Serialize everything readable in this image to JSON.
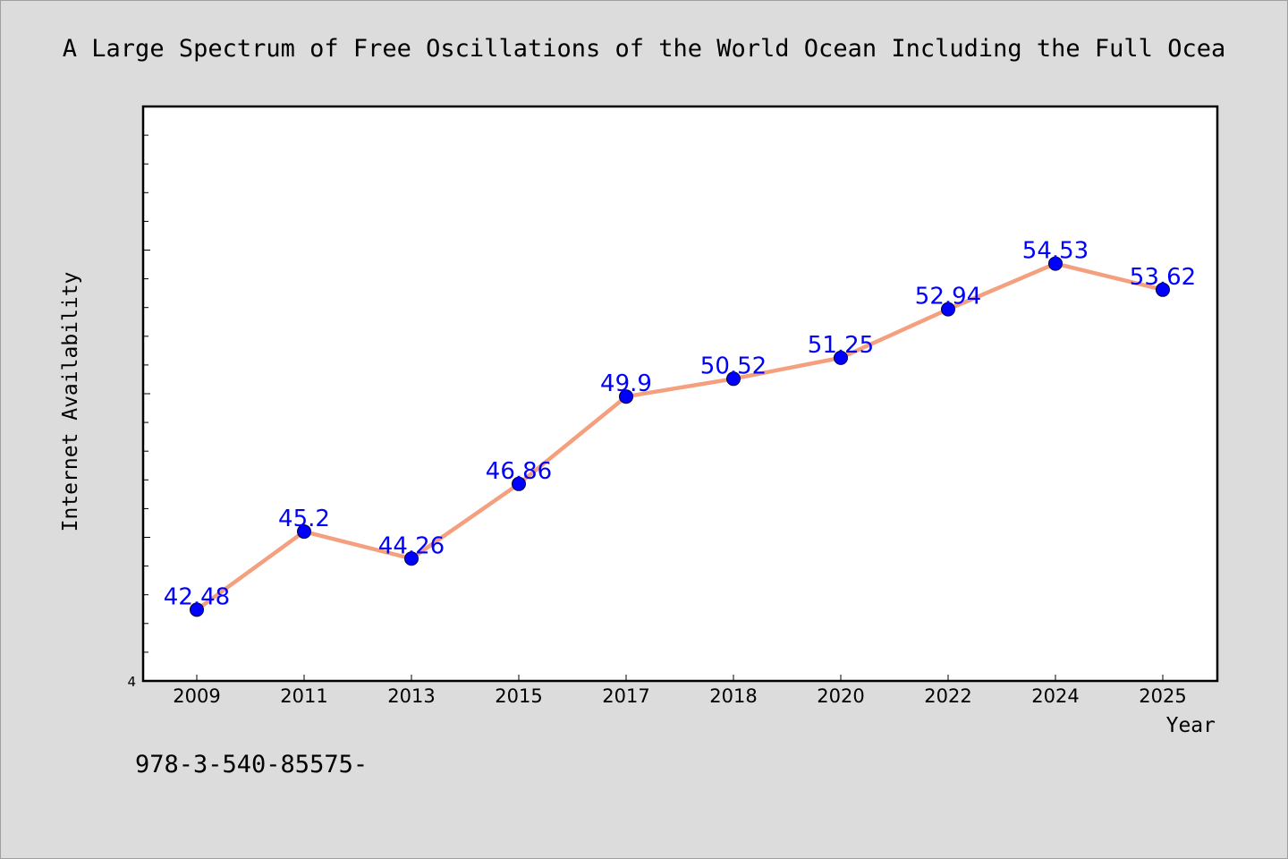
{
  "chart_data": {
    "type": "line",
    "title": "A Large Spectrum of Free Oscillations of the World Ocean Including the Full Ocea",
    "xlabel": "Year",
    "ylabel": "Internet Availability",
    "categories": [
      "2009",
      "2011",
      "2013",
      "2015",
      "2017",
      "2018",
      "2020",
      "2022",
      "2024",
      "2025"
    ],
    "series": [
      {
        "values": [
          42.48,
          45.2,
          44.26,
          46.86,
          49.9,
          50.52,
          51.25,
          52.94,
          54.53,
          53.62
        ],
        "labels": [
          "42.48",
          "45.2",
          "44.26",
          "46.86",
          "49.9",
          "50.52",
          "51.25",
          "52.94",
          "54.53",
          "53.62"
        ]
      }
    ],
    "ylim": [
      40,
      60
    ],
    "y_tick_label": "4",
    "line_color": "#f4a07e",
    "marker_color": "#0000ff",
    "label_color": "#0000ff",
    "grid": false,
    "legend": "none"
  },
  "footer": {
    "isbn": "978-3-540-85575-"
  }
}
